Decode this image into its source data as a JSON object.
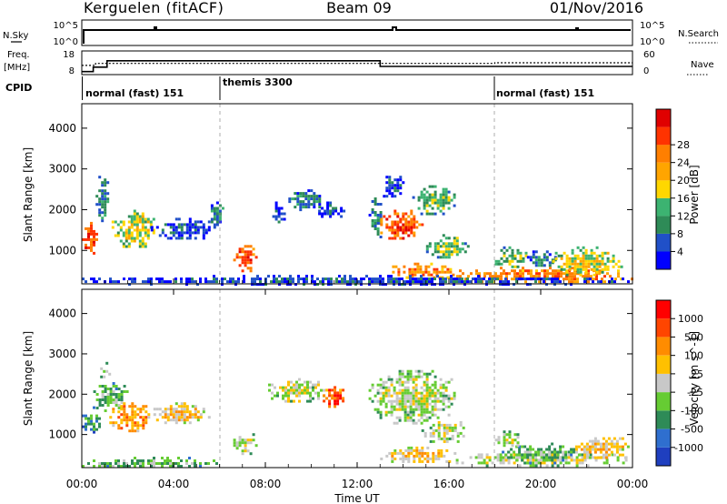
{
  "header": {
    "station": "Kerguelen (fitACF)",
    "beam": "Beam 09",
    "date": "01/Nov/2016"
  },
  "left_labels": {
    "nsky": "N.Sky",
    "freq_line1": "Freq.",
    "freq_line2": "[MHz]",
    "cpid": "CPID"
  },
  "right_labels": {
    "nsearch": "N.Search",
    "nave": "Nave"
  },
  "status_panel": {
    "left_ticks": [
      "10^5",
      "10^0"
    ],
    "right_ticks": [
      "10^5",
      "10^0"
    ]
  },
  "freq_panel": {
    "left_ticks": [
      "18",
      "8"
    ],
    "right_ticks": [
      "60",
      "0"
    ],
    "freq_mhz": {
      "x_hours": [
        0,
        0.5,
        0.5,
        1.1,
        1.1,
        13.0,
        13.0,
        24
      ],
      "y": [
        8.6,
        8.6,
        10.8,
        10.8,
        14.0,
        14.0,
        11.2,
        11.2
      ]
    },
    "nave": {
      "x_hours": [
        0,
        0.6,
        0.6,
        18.0,
        18.0,
        24
      ],
      "y": [
        22,
        22,
        28,
        28,
        30,
        30
      ]
    }
  },
  "cpid_segments": [
    {
      "start_h": 0,
      "end_h": 6,
      "label": "normal (fast) 151"
    },
    {
      "start_h": 6,
      "end_h": 18,
      "label": "themis 3300"
    },
    {
      "start_h": 18,
      "end_h": 24,
      "label": "normal (fast) 151"
    }
  ],
  "colorbars": {
    "power": {
      "title": "Power [dB]",
      "ticks": [
        "4",
        "8",
        "12",
        "16",
        "20",
        "24",
        "28"
      ],
      "colors": [
        "#0000ff",
        "#2050c8",
        "#2e8b57",
        "#3cb371",
        "#ffd700",
        "#ffa500",
        "#ff7f00",
        "#ff3300",
        "#e00000"
      ]
    },
    "velocity": {
      "title": "Velocity [m s^-1]",
      "ticks": [
        "1000",
        "500",
        "100",
        "25",
        "-25",
        "-100",
        "-500",
        "-1000"
      ],
      "colors": [
        "#1f3fbf",
        "#2f6fcf",
        "#2e8b57",
        "#66cc33",
        "#c8c8c8",
        "#ffc000",
        "#ff8c00",
        "#ff4500",
        "#ff0000"
      ]
    }
  },
  "chart_data": [
    {
      "type": "heatmap",
      "panel": "power",
      "ylabel": "Slant Range [km]",
      "ylim": [
        180,
        4600
      ],
      "yticks": [
        1000,
        2000,
        3000,
        4000
      ],
      "xlim": [
        0,
        24
      ],
      "blobs": [
        {
          "t0": 0.0,
          "t1": 0.7,
          "r0": 900,
          "r1": 1700,
          "level": 7
        },
        {
          "t0": 0.6,
          "t1": 1.1,
          "r0": 1700,
          "r1": 2900,
          "level": 2
        },
        {
          "t0": 1.3,
          "t1": 3.2,
          "r0": 1100,
          "r1": 2000,
          "level": 4
        },
        {
          "t0": 3.0,
          "t1": 5.8,
          "r0": 1300,
          "r1": 1800,
          "level": 1
        },
        {
          "t0": 5.5,
          "t1": 6.2,
          "r0": 1600,
          "r1": 2200,
          "level": 2
        },
        {
          "t0": 6.6,
          "t1": 7.6,
          "r0": 500,
          "r1": 1200,
          "level": 7
        },
        {
          "t0": 8.3,
          "t1": 8.8,
          "r0": 1700,
          "r1": 2200,
          "level": 1
        },
        {
          "t0": 9.0,
          "t1": 10.4,
          "r0": 2000,
          "r1": 2500,
          "level": 2
        },
        {
          "t0": 10.3,
          "t1": 11.4,
          "r0": 1800,
          "r1": 2200,
          "level": 1
        },
        {
          "t0": 12.5,
          "t1": 13.1,
          "r0": 1300,
          "r1": 2300,
          "level": 2
        },
        {
          "t0": 13.0,
          "t1": 14.0,
          "r0": 2300,
          "r1": 2900,
          "level": 1
        },
        {
          "t0": 13.0,
          "t1": 14.8,
          "r0": 1300,
          "r1": 2000,
          "level": 7
        },
        {
          "t0": 14.4,
          "t1": 16.3,
          "r0": 1900,
          "r1": 2600,
          "level": 3
        },
        {
          "t0": 13.4,
          "t1": 16.2,
          "r0": 300,
          "r1": 700,
          "level": 6
        },
        {
          "t0": 15.0,
          "t1": 16.8,
          "r0": 800,
          "r1": 1400,
          "level": 3
        },
        {
          "t0": 16.2,
          "t1": 24.0,
          "r0": 250,
          "r1": 600,
          "level": 6
        },
        {
          "t0": 18.0,
          "t1": 19.4,
          "r0": 600,
          "r1": 1100,
          "level": 3
        },
        {
          "t0": 19.4,
          "t1": 20.6,
          "r0": 600,
          "r1": 1000,
          "level": 2
        },
        {
          "t0": 20.5,
          "t1": 23.5,
          "r0": 400,
          "r1": 1100,
          "level": 4
        },
        {
          "t0": 0.0,
          "t1": 24.0,
          "r0": 180,
          "r1": 400,
          "level": 1
        }
      ]
    },
    {
      "type": "heatmap",
      "panel": "velocity",
      "xlabel": "Time UT",
      "ylabel": "Slant Range [km]",
      "ylim": [
        180,
        4600
      ],
      "yticks": [
        1000,
        2000,
        3000,
        4000
      ],
      "xlim": [
        0,
        24
      ],
      "xticks": [
        "00:00",
        "04:00",
        "08:00",
        "12:00",
        "16:00",
        "20:00",
        "00:00"
      ],
      "blobs": [
        {
          "t0": 0.0,
          "t1": 0.8,
          "r0": 1000,
          "r1": 1700,
          "level": 2
        },
        {
          "t0": 0.5,
          "t1": 2.0,
          "r0": 1600,
          "r1": 2300,
          "level": 3
        },
        {
          "t0": 0.8,
          "t1": 1.2,
          "r0": 2300,
          "r1": 2800,
          "level": 4
        },
        {
          "t0": 1.2,
          "t1": 3.0,
          "r0": 1100,
          "r1": 1800,
          "level": 6
        },
        {
          "t0": 3.0,
          "t1": 5.5,
          "r0": 1300,
          "r1": 1800,
          "level": 5
        },
        {
          "t0": 6.6,
          "t1": 7.6,
          "r0": 500,
          "r1": 1100,
          "level": 4
        },
        {
          "t0": 8.0,
          "t1": 10.5,
          "r0": 1800,
          "r1": 2400,
          "level": 4
        },
        {
          "t0": 10.5,
          "t1": 11.5,
          "r0": 1700,
          "r1": 2200,
          "level": 7
        },
        {
          "t0": 12.5,
          "t1": 16.3,
          "r0": 1300,
          "r1": 2600,
          "level": 4
        },
        {
          "t0": 13.0,
          "t1": 16.3,
          "r0": 300,
          "r1": 700,
          "level": 5
        },
        {
          "t0": 14.8,
          "t1": 16.8,
          "r0": 800,
          "r1": 1400,
          "level": 4
        },
        {
          "t0": 16.3,
          "t1": 24.0,
          "r0": 250,
          "r1": 600,
          "level": 4
        },
        {
          "t0": 18.3,
          "t1": 21.5,
          "r0": 300,
          "r1": 800,
          "level": 3
        },
        {
          "t0": 18.0,
          "t1": 19.2,
          "r0": 700,
          "r1": 1100,
          "level": 4
        },
        {
          "t0": 21.5,
          "t1": 23.8,
          "r0": 400,
          "r1": 1000,
          "level": 5
        },
        {
          "t0": 0.0,
          "t1": 6.0,
          "r0": 180,
          "r1": 450,
          "level": 3
        }
      ]
    }
  ]
}
